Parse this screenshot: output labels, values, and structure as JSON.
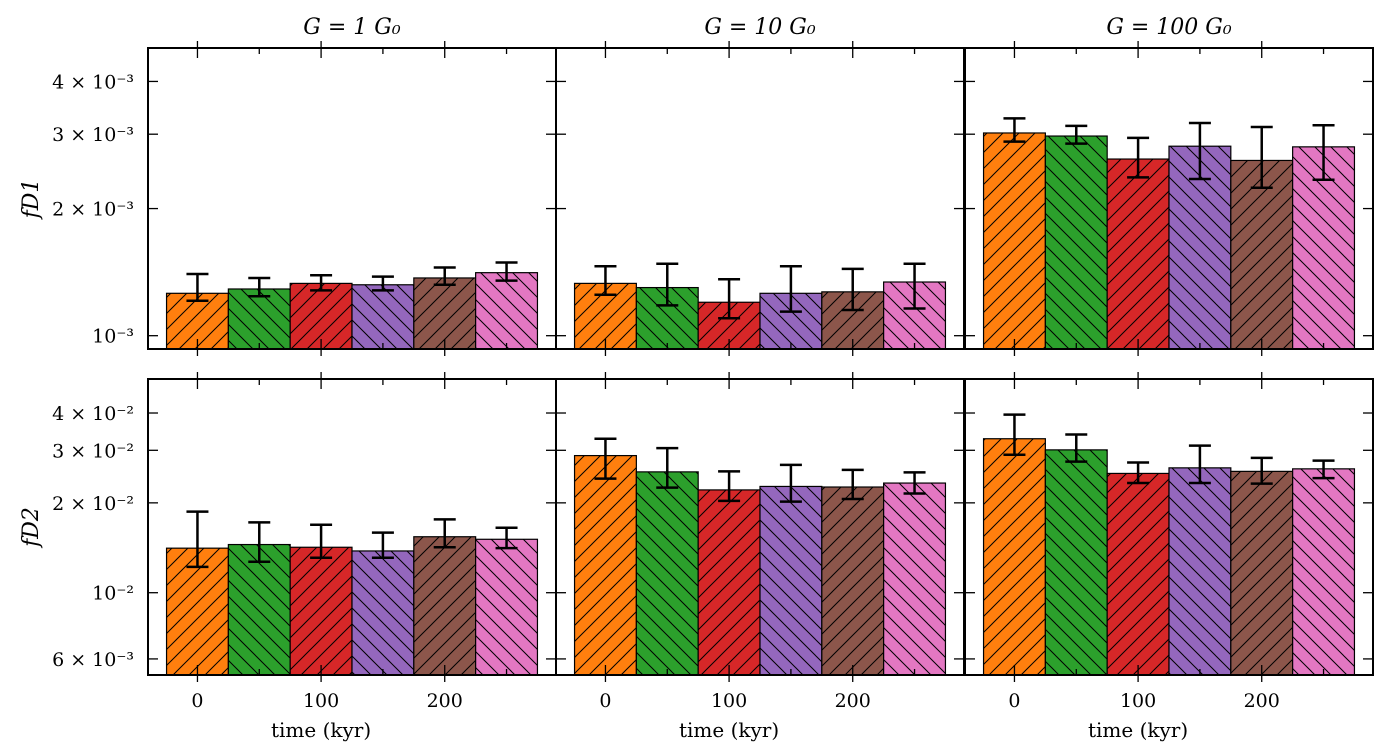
{
  "chart_data": {
    "type": "bar",
    "layout": "2x3 grid, shared axes",
    "column_titles": [
      "G = 1 G₀",
      "G = 10 G₀",
      "G = 100 G₀"
    ],
    "row_ylabels": [
      "fD1",
      "fD2"
    ],
    "xlabel": "time (kyr)",
    "x_ticks": [
      "0",
      "100",
      "200"
    ],
    "x_positions": [
      0,
      50,
      100,
      150,
      200,
      250
    ],
    "bar_width": 50,
    "xlim": [
      -40,
      290
    ],
    "series_colors": [
      "#ff7f0e",
      "#2ca02c",
      "#d62728",
      "#9467bd",
      "#8c564b",
      "#e377c2"
    ],
    "hatch_pattern": [
      "/",
      "\\",
      "/",
      "\\",
      "/",
      "\\"
    ],
    "rows": [
      {
        "ylabel": "fD1",
        "yscale": "log",
        "ylim": [
          0.00093,
          0.0048
        ],
        "y_ticks": [
          {
            "value": 0.001,
            "label": "10⁻³"
          },
          {
            "value": 0.002,
            "label": "2 × 10⁻³"
          },
          {
            "value": 0.003,
            "label": "3 × 10⁻³"
          },
          {
            "value": 0.004,
            "label": "4 × 10⁻³"
          }
        ],
        "panels": [
          {
            "title": "G = 1 G₀",
            "values": [
              0.00126,
              0.00129,
              0.00133,
              0.00132,
              0.00137,
              0.00141
            ],
            "err_low": [
              0.00121,
              0.00124,
              0.00128,
              0.00128,
              0.00132,
              0.00135
            ],
            "err_high": [
              0.0014,
              0.00137,
              0.00139,
              0.00138,
              0.00145,
              0.00149
            ]
          },
          {
            "title": "G = 10 G₀",
            "values": [
              0.00133,
              0.0013,
              0.0012,
              0.00126,
              0.00127,
              0.00134
            ],
            "err_low": [
              0.00125,
              0.00118,
              0.0011,
              0.00114,
              0.00115,
              0.00116
            ],
            "err_high": [
              0.00146,
              0.00148,
              0.00136,
              0.00146,
              0.00144,
              0.00148
            ]
          },
          {
            "title": "G = 100 G₀",
            "values": [
              0.00302,
              0.00297,
              0.00262,
              0.00281,
              0.0026,
              0.0028
            ],
            "err_low": [
              0.00288,
              0.00285,
              0.00237,
              0.00235,
              0.00224,
              0.00234
            ],
            "err_high": [
              0.00327,
              0.00314,
              0.00294,
              0.00319,
              0.00312,
              0.00315
            ]
          }
        ]
      },
      {
        "ylabel": "fD2",
        "yscale": "log",
        "ylim": [
          0.0053,
          0.052
        ],
        "y_ticks": [
          {
            "value": 0.006,
            "label": "6 × 10⁻³"
          },
          {
            "value": 0.01,
            "label": "10⁻²"
          },
          {
            "value": 0.02,
            "label": "2 × 10⁻²"
          },
          {
            "value": 0.03,
            "label": "3 × 10⁻²"
          },
          {
            "value": 0.04,
            "label": "4 × 10⁻²"
          }
        ],
        "panels": [
          {
            "title": "G = 1 G₀",
            "values": [
              0.0141,
              0.0145,
              0.0142,
              0.0138,
              0.0154,
              0.0151
            ],
            "err_low": [
              0.0122,
              0.0127,
              0.0131,
              0.0131,
              0.0142,
              0.0141
            ],
            "err_high": [
              0.0187,
              0.0172,
              0.0169,
              0.0159,
              0.0176,
              0.0165
            ]
          },
          {
            "title": "G = 10 G₀",
            "values": [
              0.0288,
              0.0254,
              0.0221,
              0.0227,
              0.0226,
              0.0233
            ],
            "err_low": [
              0.0241,
              0.0225,
              0.0203,
              0.0202,
              0.0206,
              0.0215
            ],
            "err_high": [
              0.0328,
              0.0305,
              0.0255,
              0.0268,
              0.0258,
              0.0253
            ]
          },
          {
            "title": "G = 100 G₀",
            "values": [
              0.0328,
              0.0301,
              0.0251,
              0.0262,
              0.0255,
              0.026
            ],
            "err_low": [
              0.029,
              0.0275,
              0.0233,
              0.0233,
              0.0232,
              0.0242
            ],
            "err_high": [
              0.0395,
              0.0339,
              0.0273,
              0.0311,
              0.0283,
              0.0277
            ]
          }
        ]
      }
    ]
  }
}
